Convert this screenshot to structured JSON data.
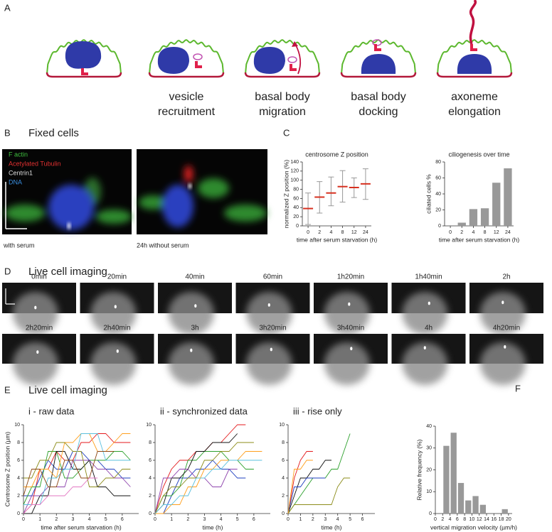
{
  "panel_labels": [
    "A",
    "B",
    "C",
    "D",
    "E",
    "F"
  ],
  "stages": [
    [
      "vesicle",
      "recruitment"
    ],
    [
      "basal body",
      "migration"
    ],
    [
      "basal body",
      "docking"
    ],
    [
      "axoneme",
      "elongation"
    ]
  ],
  "fixed_cells": {
    "title": "Fixed cells",
    "channels": [
      "F actin",
      "Acetylated Tubulin",
      "Centrin1",
      "DNA"
    ],
    "captions": [
      "with serum",
      "24h without serum"
    ]
  },
  "live_imaging": {
    "title": "Live cell imaging",
    "times": [
      "0min",
      "20min",
      "40min",
      "60min",
      "1h20min",
      "1h40min",
      "2h",
      "2h20min",
      "2h40min",
      "3h",
      "3h20min",
      "3h40min",
      "4h",
      "4h20min"
    ]
  },
  "panel_e": {
    "title": "Live cell imaging"
  },
  "chart_data": [
    {
      "type": "range",
      "title": "centrosome Z position",
      "categories": [
        "0",
        "2",
        "4",
        "8",
        "12",
        "24"
      ],
      "values": [
        38,
        63,
        72,
        86,
        84,
        92
      ],
      "lows": [
        3,
        28,
        44,
        52,
        62,
        58
      ],
      "highs": [
        72,
        97,
        107,
        121,
        105,
        125
      ],
      "color": "#d7301f",
      "whisker_color": "#999999",
      "ylim": [
        0,
        140
      ],
      "yticks": [
        0,
        20,
        40,
        60,
        80,
        100,
        120,
        140
      ],
      "ylabel": "normalized Z position (%)",
      "xlabel": "time after serum starvation (h)"
    },
    {
      "type": "bar",
      "title": "ciliogenesis over time",
      "categories": [
        "0",
        "2",
        "4",
        "8",
        "12",
        "24"
      ],
      "values": [
        0,
        4,
        21,
        22,
        54,
        72
      ],
      "color": "#999999",
      "ylim": [
        0,
        80
      ],
      "yticks": [
        0,
        20,
        40,
        60,
        80
      ],
      "ylabel": "ciliated cells %",
      "xlabel": "time after serum starvation (h)"
    },
    {
      "type": "line",
      "title": "i - raw data",
      "x": [
        0,
        0.5,
        1,
        1.5,
        2,
        2.5,
        3,
        3.5,
        4,
        4.5,
        5,
        5.5,
        6,
        6.5
      ],
      "series": [
        {
          "color": "#e41a1c",
          "values": [
            0,
            1,
            5,
            5,
            7,
            6,
            6,
            8,
            8,
            9,
            9,
            8,
            8,
            8
          ]
        },
        {
          "color": "#1f3fbf",
          "values": [
            2,
            2,
            4,
            6,
            5,
            5,
            7,
            7,
            6,
            6,
            5,
            5,
            4,
            4
          ]
        },
        {
          "color": "#2ca02c",
          "values": [
            1,
            3,
            3,
            7,
            7,
            4,
            4,
            5,
            6,
            6,
            6,
            7,
            7,
            6
          ]
        },
        {
          "color": "#111111",
          "values": [
            0,
            0,
            2,
            2,
            7,
            7,
            5,
            5,
            6,
            3,
            3,
            2,
            2,
            2
          ]
        },
        {
          "color": "#ff9f1c",
          "values": [
            3,
            3,
            5,
            5,
            4,
            8,
            8,
            9,
            9,
            7,
            7,
            8,
            9,
            9
          ]
        },
        {
          "color": "#8e44ad",
          "values": [
            0,
            2,
            2,
            3,
            3,
            3,
            6,
            6,
            6,
            5,
            5,
            4,
            4,
            3
          ]
        },
        {
          "color": "#8c8c1a",
          "values": [
            4,
            4,
            6,
            6,
            8,
            8,
            7,
            7,
            3,
            3,
            4,
            4,
            5,
            5
          ]
        },
        {
          "color": "#5bc0de",
          "values": [
            1,
            1,
            1,
            4,
            4,
            5,
            5,
            9,
            9,
            9,
            6,
            6,
            6,
            6
          ]
        },
        {
          "color": "#8b4513",
          "values": [
            2,
            5,
            5,
            3,
            3,
            6,
            6,
            4,
            4,
            7,
            7,
            7,
            null,
            null
          ]
        },
        {
          "color": "#e377c2",
          "values": [
            0,
            1,
            1,
            2,
            2,
            2,
            3,
            3,
            4,
            4,
            null,
            null,
            null,
            null
          ]
        }
      ],
      "xlim": [
        0,
        7
      ],
      "xticks": [
        0,
        1,
        2,
        3,
        4,
        5,
        6
      ],
      "ylim": [
        0,
        10
      ],
      "yticks": [
        0,
        2,
        4,
        6,
        8,
        10
      ],
      "ylabel": "Centrosome Z position (µm)",
      "xlabel": "time after serum starvation (h)"
    },
    {
      "type": "line",
      "title": "ii - synchronized data",
      "x": [
        0,
        0.5,
        1,
        1.5,
        2,
        2.5,
        3,
        3.5,
        4,
        4.5,
        5,
        5.5,
        6,
        6.5
      ],
      "series": [
        {
          "color": "#e41a1c",
          "values": [
            0,
            3,
            5,
            6,
            6,
            7,
            7,
            8,
            8,
            9,
            10,
            10,
            null,
            null
          ]
        },
        {
          "color": "#1f3fbf",
          "values": [
            0,
            0,
            2,
            4,
            4,
            5,
            5,
            6,
            5,
            5,
            4,
            4,
            null,
            null
          ]
        },
        {
          "color": "#2ca02c",
          "values": [
            0,
            2,
            2,
            3,
            6,
            6,
            7,
            7,
            7,
            6,
            6,
            5,
            5,
            null
          ]
        },
        {
          "color": "#111111",
          "values": [
            0,
            1,
            4,
            4,
            5,
            7,
            7,
            8,
            8,
            8,
            9,
            null,
            null,
            null
          ]
        },
        {
          "color": "#ff9f1c",
          "values": [
            0,
            0,
            1,
            1,
            3,
            3,
            5,
            5,
            6,
            6,
            6,
            7,
            7,
            7
          ]
        },
        {
          "color": "#8e44ad",
          "values": [
            0,
            4,
            4,
            5,
            5,
            4,
            4,
            3,
            3,
            5,
            5,
            null,
            null,
            null
          ]
        },
        {
          "color": "#8c8c1a",
          "values": [
            0,
            2,
            3,
            3,
            4,
            4,
            6,
            6,
            7,
            7,
            8,
            8,
            8,
            null
          ]
        },
        {
          "color": "#5bc0de",
          "values": [
            0,
            1,
            1,
            2,
            2,
            4,
            4,
            5,
            5,
            6,
            6,
            6,
            6,
            6
          ]
        }
      ],
      "xlim": [
        0,
        7
      ],
      "xticks": [
        0,
        1,
        2,
        3,
        4,
        5,
        6
      ],
      "ylim": [
        0,
        10
      ],
      "yticks": [
        0,
        2,
        4,
        6,
        8,
        10
      ],
      "xlabel": "time (h)"
    },
    {
      "type": "line",
      "title": "iii - rise only",
      "x": [
        0,
        0.5,
        1,
        1.5,
        2,
        2.5,
        3,
        3.5,
        4,
        4.5,
        5,
        5.5,
        6
      ],
      "series": [
        {
          "color": "#e41a1c",
          "values": [
            0,
            4,
            6,
            7,
            7,
            null,
            null,
            null,
            null,
            null,
            null,
            null,
            null
          ]
        },
        {
          "color": "#111111",
          "values": [
            0,
            2,
            4,
            4,
            5,
            5,
            6,
            6,
            null,
            null,
            null,
            null,
            null
          ]
        },
        {
          "color": "#2ca02c",
          "values": [
            0,
            1,
            2,
            3,
            4,
            4,
            4,
            5,
            5,
            7,
            9,
            null,
            null
          ]
        },
        {
          "color": "#1f3fbf",
          "values": [
            0,
            3,
            3,
            4,
            4,
            4,
            4,
            null,
            null,
            null,
            null,
            null,
            null
          ]
        },
        {
          "color": "#8c8c1a",
          "values": [
            0,
            1,
            1,
            1,
            1,
            1,
            1,
            1,
            3,
            4,
            4,
            null,
            null
          ]
        },
        {
          "color": "#ff9f1c",
          "values": [
            0,
            5,
            5,
            6,
            6,
            null,
            null,
            null,
            null,
            null,
            null,
            null,
            null
          ]
        }
      ],
      "xlim": [
        0,
        7
      ],
      "xticks": [
        0,
        1,
        2,
        3,
        4,
        5,
        6
      ],
      "ylim": [
        0,
        10
      ],
      "yticks": [
        0,
        2,
        4,
        6,
        8,
        10
      ],
      "xlabel": "time (h)"
    },
    {
      "type": "histogram",
      "bins": [
        0,
        2,
        4,
        6,
        8,
        10,
        12,
        14,
        16,
        18,
        20
      ],
      "values": [
        0,
        31,
        37,
        14,
        6,
        8,
        4,
        0,
        0,
        2
      ],
      "color": "#999999",
      "xlim": [
        0,
        21
      ],
      "xticks": [
        0,
        2,
        4,
        6,
        8,
        10,
        12,
        14,
        16,
        18,
        20
      ],
      "ylim": [
        0,
        40
      ],
      "yticks": [
        0,
        10,
        20,
        30,
        40
      ],
      "ylabel": "Relative frequency (%)",
      "xlabel": "vertical migration velocity (µm/h)"
    }
  ]
}
